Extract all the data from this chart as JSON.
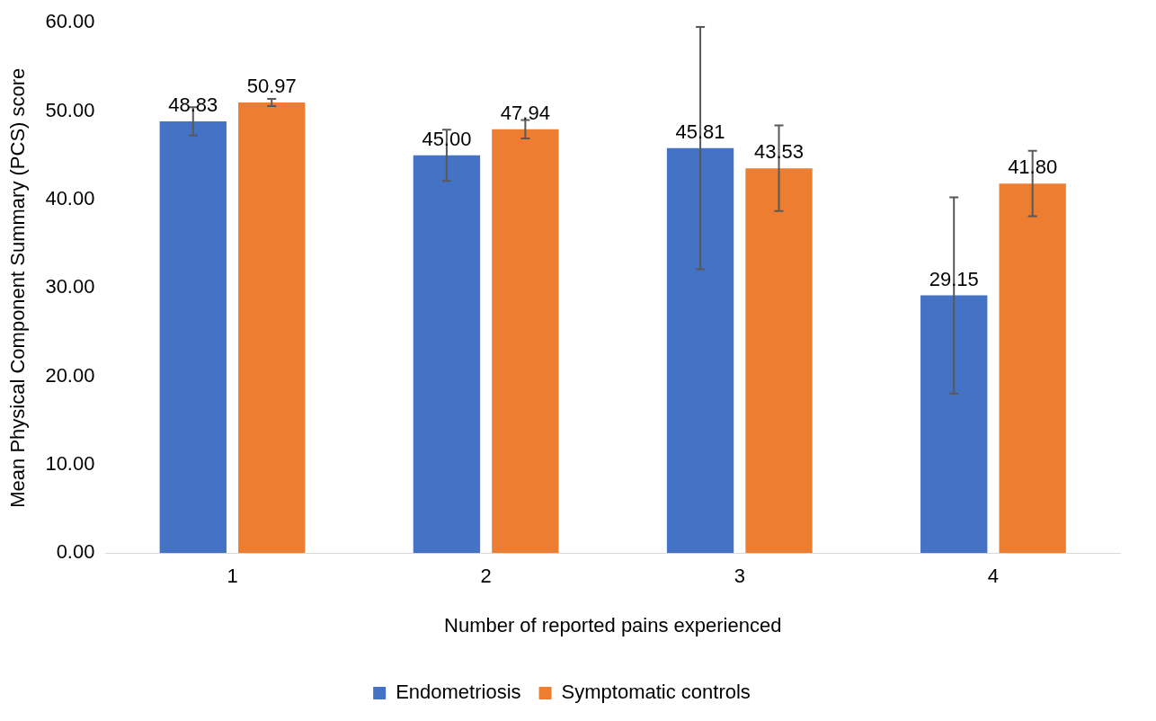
{
  "chart_data": {
    "type": "bar",
    "xlabel": "Number of reported pains experienced",
    "ylabel": "Mean Physical Component Summary (PCS) score",
    "categories": [
      "1",
      "2",
      "3",
      "4"
    ],
    "series": [
      {
        "name": "Endometriosis",
        "color": "#4472c4",
        "values": [
          48.83,
          45.0,
          45.81,
          29.15
        ],
        "value_labels": [
          "48.83",
          "45.00",
          "45.81",
          "29.15"
        ],
        "errors": [
          1.6,
          2.9,
          13.7,
          11.1
        ]
      },
      {
        "name": "Symptomatic controls",
        "color": "#ed7d31",
        "values": [
          50.97,
          47.94,
          43.53,
          41.8
        ],
        "value_labels": [
          "50.97",
          "47.94",
          "43.53",
          "41.80"
        ],
        "errors": [
          0.4,
          1.05,
          4.85,
          3.7
        ]
      }
    ],
    "ylim": [
      0,
      60
    ],
    "yticks": [
      {
        "value": 0,
        "label": "0.00"
      },
      {
        "value": 10,
        "label": "10.00"
      },
      {
        "value": 20,
        "label": "20.00"
      },
      {
        "value": 30,
        "label": "30.00"
      },
      {
        "value": 40,
        "label": "40.00"
      },
      {
        "value": 50,
        "label": "50.00"
      },
      {
        "value": 60,
        "label": "60.00"
      }
    ],
    "grid": false,
    "legend": "bottom"
  }
}
